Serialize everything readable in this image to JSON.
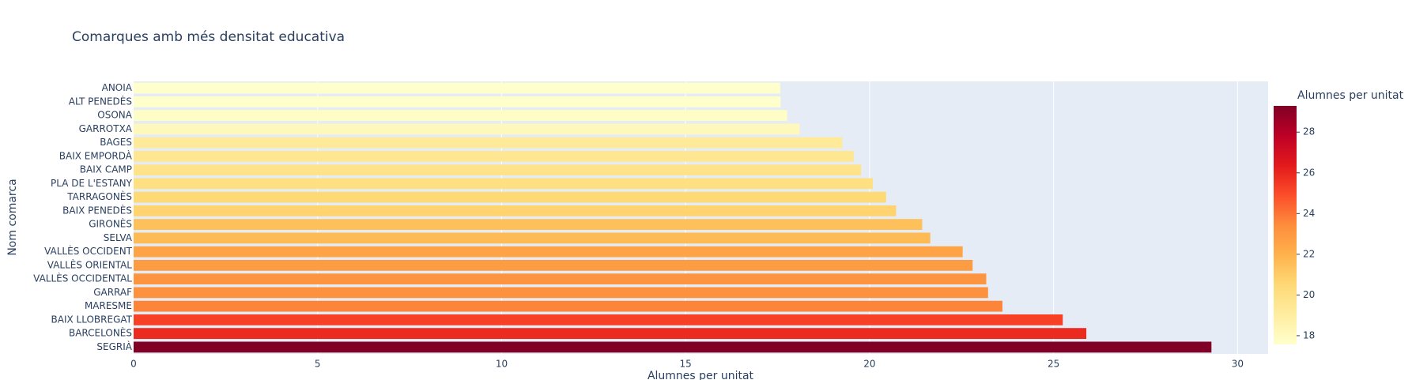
{
  "chart_data": {
    "type": "bar",
    "orientation": "h",
    "title": "Comarques amb més densitat educativa",
    "x_label": "Alumnes per unitat",
    "y_label": "Nom comarca",
    "categories": [
      "ANOIA",
      "ALT PENEDÈS",
      "OSONA",
      "GARROTXA",
      "BAGES",
      "BAIX EMPORDÀ",
      "BAIX CAMP",
      "PLA DE L'ESTANY",
      "TARRAGONÈS",
      "BAIX PENEDÈS",
      "GIRONÈS",
      "SELVA",
      "VALLÈS OCCIDENT",
      "VALLÈS ORIENTAL",
      "VALLÈS OCCIDENTAL",
      "GARRAF",
      "MARESME",
      "BAIX LLOBREGAT",
      "BARCELONÈS",
      "SEGRIÀ"
    ],
    "values": [
      17.57,
      17.58,
      17.76,
      18.1,
      19.26,
      19.57,
      19.77,
      20.09,
      20.45,
      20.72,
      21.43,
      21.65,
      22.53,
      22.8,
      23.17,
      23.22,
      23.61,
      25.25,
      25.89,
      29.29
    ],
    "xlim": [
      0,
      30.83
    ],
    "xticks": [
      0,
      5,
      10,
      15,
      20,
      25,
      30
    ],
    "grid": true,
    "colorbar_title": "Alumnes per unitat",
    "clim": [
      17.57,
      29.29
    ],
    "cticks": [
      18,
      20,
      22,
      24,
      26,
      28
    ],
    "colorscale": [
      "#ffffcc",
      "#ffeda0",
      "#fed976",
      "#feb24c",
      "#fd8d3c",
      "#fc4e2a",
      "#e31a1c",
      "#bd0026",
      "#800026"
    ]
  }
}
